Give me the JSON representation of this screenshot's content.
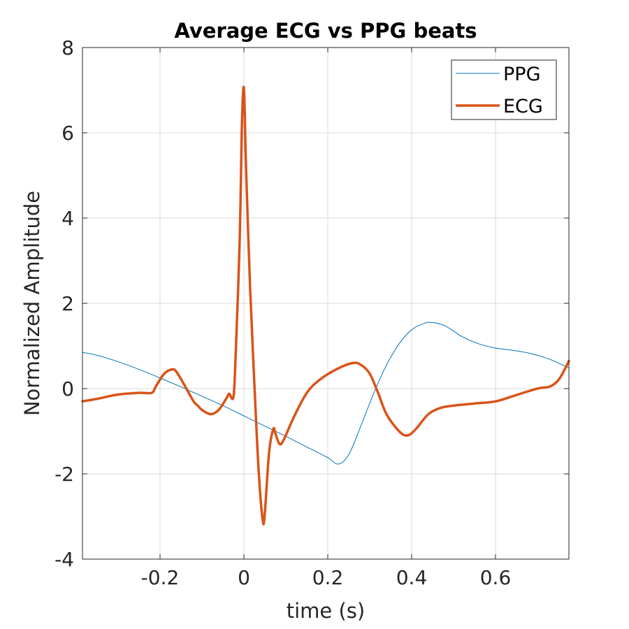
{
  "chart_data": {
    "type": "line",
    "title": "Average ECG vs PPG beats",
    "xlabel": "time (s)",
    "ylabel": "Normalized Amplitude",
    "xlim": [
      -0.385,
      0.775
    ],
    "ylim": [
      -4,
      8
    ],
    "xticks": [
      -0.2,
      0,
      0.2,
      0.4,
      0.6
    ],
    "xtick_labels": [
      "-0.2",
      "0",
      "0.2",
      "0.4",
      "0.6"
    ],
    "yticks": [
      -4,
      -2,
      0,
      2,
      4,
      6,
      8
    ],
    "ytick_labels": [
      "-4",
      "-2",
      "0",
      "2",
      "4",
      "6",
      "8"
    ],
    "grid": true,
    "legend_position": "top-right",
    "series": [
      {
        "name": "PPG",
        "color": "#0072bd",
        "line_weight": "thin",
        "x": [
          -0.385,
          -0.35,
          -0.3,
          -0.25,
          -0.2,
          -0.15,
          -0.1,
          -0.05,
          0,
          0.05,
          0.1,
          0.15,
          0.2,
          0.225,
          0.25,
          0.28,
          0.31,
          0.34,
          0.37,
          0.4,
          0.43,
          0.45,
          0.48,
          0.52,
          0.56,
          0.6,
          0.64,
          0.68,
          0.72,
          0.75,
          0.775
        ],
        "y": [
          0.85,
          0.78,
          0.63,
          0.45,
          0.25,
          0.04,
          -0.18,
          -0.4,
          -0.64,
          -0.88,
          -1.12,
          -1.37,
          -1.62,
          -1.77,
          -1.55,
          -0.85,
          -0.1,
          0.55,
          1.05,
          1.38,
          1.53,
          1.55,
          1.47,
          1.22,
          1.05,
          0.95,
          0.9,
          0.83,
          0.72,
          0.6,
          0.48
        ]
      },
      {
        "name": "ECG",
        "color": "#d95319",
        "line_weight": "thick",
        "x": [
          -0.385,
          -0.35,
          -0.3,
          -0.25,
          -0.22,
          -0.21,
          -0.19,
          -0.17,
          -0.16,
          -0.14,
          -0.12,
          -0.11,
          -0.1,
          -0.08,
          -0.06,
          -0.04,
          -0.035,
          -0.025,
          -0.02,
          -0.01,
          -0.005,
          0,
          0.005,
          0.015,
          0.025,
          0.035,
          0.045,
          0.05,
          0.06,
          0.07,
          0.075,
          0.085,
          0.095,
          0.12,
          0.15,
          0.18,
          0.22,
          0.26,
          0.28,
          0.3,
          0.32,
          0.34,
          0.37,
          0.39,
          0.41,
          0.44,
          0.47,
          0.5,
          0.55,
          0.6,
          0.65,
          0.7,
          0.73,
          0.75,
          0.765,
          0.775
        ],
        "y": [
          -0.3,
          -0.24,
          -0.14,
          -0.1,
          -0.1,
          0.05,
          0.35,
          0.45,
          0.38,
          0.05,
          -0.3,
          -0.4,
          -0.5,
          -0.6,
          -0.5,
          -0.2,
          -0.12,
          -0.2,
          0.7,
          3.5,
          6.1,
          7.05,
          5.2,
          2.3,
          0.1,
          -1.9,
          -3.1,
          -2.9,
          -1.5,
          -0.95,
          -1.05,
          -1.3,
          -1.2,
          -0.65,
          -0.1,
          0.2,
          0.45,
          0.6,
          0.55,
          0.35,
          -0.1,
          -0.6,
          -1.0,
          -1.1,
          -0.95,
          -0.6,
          -0.45,
          -0.4,
          -0.35,
          -0.3,
          -0.15,
          0.0,
          0.05,
          0.2,
          0.45,
          0.65
        ]
      }
    ]
  }
}
